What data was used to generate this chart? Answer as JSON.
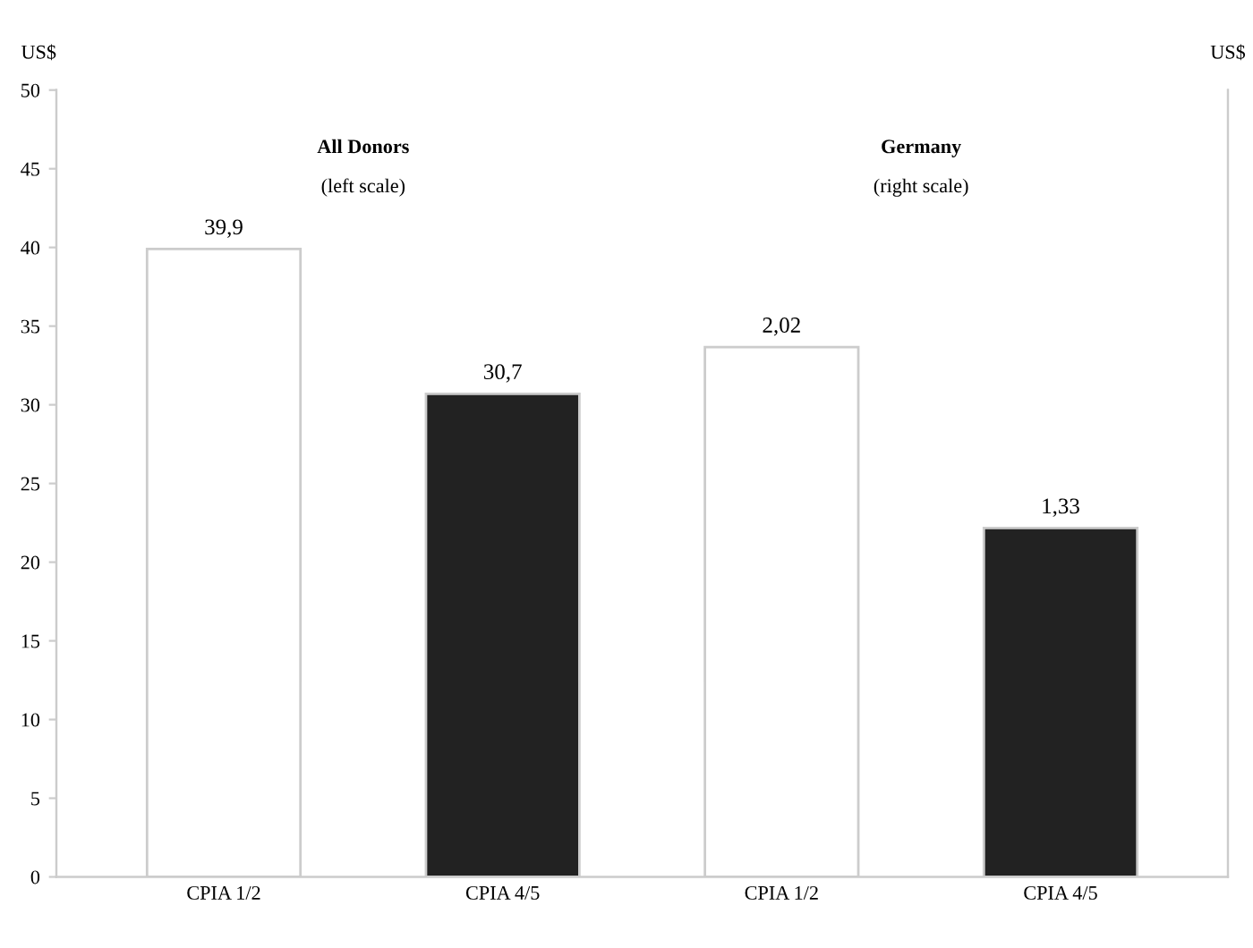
{
  "chart_data": {
    "type": "bar",
    "categories": [
      "CPIA 1/2",
      "CPIA 4/5",
      "CPIA 1/2",
      "CPIA 4/5"
    ],
    "ylabel": "US$",
    "y2label": "US$",
    "ylim": [
      0,
      50
    ],
    "yticks": [
      0,
      5,
      10,
      15,
      20,
      25,
      30,
      35,
      40,
      45,
      50
    ],
    "y2lim": [
      0,
      3
    ],
    "series": [
      {
        "colors": [
          "#ffffff",
          "#222222",
          null,
          null
        ],
        "values": [
          39.9,
          30.7,
          null,
          null
        ],
        "value_labels": [
          "39,9",
          "30,7",
          null,
          null
        ]
      },
      {
        "axis": "y2",
        "colors": [
          null,
          null,
          "#ffffff",
          "#222222"
        ],
        "values": [
          null,
          null,
          2.02,
          1.33
        ],
        "value_labels": [
          null,
          null,
          "2,02",
          "1,33"
        ]
      }
    ],
    "annotations": [
      "All Donors",
      "(left scale)",
      "Germany",
      "(right scale)"
    ],
    "grid": false,
    "legend": false
  }
}
